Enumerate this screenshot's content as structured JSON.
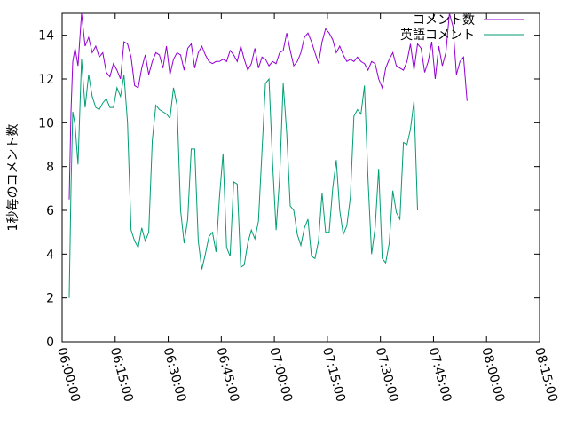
{
  "chart_data": {
    "type": "line",
    "title": "",
    "xlabel": "",
    "ylabel": "1秒毎のコメント数",
    "xlim": [
      "06:00:00",
      "08:15:00"
    ],
    "ylim": [
      0,
      15
    ],
    "y_ticks": [
      0,
      2,
      4,
      6,
      8,
      10,
      12,
      14
    ],
    "x_ticks": [
      "06:00:00",
      "06:15:00",
      "06:30:00",
      "06:45:00",
      "07:00:00",
      "07:15:00",
      "07:30:00",
      "07:45:00",
      "08:00:00",
      "08:15:00"
    ],
    "grid": false,
    "legend_position": "top-right",
    "series": [
      {
        "name": "コメント数",
        "color": "#9400d3",
        "points": [
          [
            "06:02:00",
            6.5
          ],
          [
            "06:02:30",
            10.5
          ],
          [
            "06:03:00",
            12.8
          ],
          [
            "06:03:40",
            13.4
          ],
          [
            "06:04:30",
            12.6
          ],
          [
            "06:05:30",
            15.0
          ],
          [
            "06:06:30",
            13.5
          ],
          [
            "06:07:30",
            13.9
          ],
          [
            "06:08:30",
            13.2
          ],
          [
            "06:09:30",
            13.5
          ],
          [
            "06:10:30",
            13.0
          ],
          [
            "06:11:30",
            13.2
          ],
          [
            "06:12:30",
            12.3
          ],
          [
            "06:13:30",
            12.1
          ],
          [
            "06:14:30",
            12.7
          ],
          [
            "06:15:30",
            12.4
          ],
          [
            "06:16:30",
            12.0
          ],
          [
            "06:17:30",
            13.7
          ],
          [
            "06:18:30",
            13.6
          ],
          [
            "06:19:30",
            13.0
          ],
          [
            "06:20:30",
            11.7
          ],
          [
            "06:21:30",
            11.6
          ],
          [
            "06:22:30",
            12.5
          ],
          [
            "06:23:30",
            13.1
          ],
          [
            "06:24:30",
            12.2
          ],
          [
            "06:25:30",
            12.8
          ],
          [
            "06:26:30",
            13.2
          ],
          [
            "06:27:30",
            13.1
          ],
          [
            "06:28:30",
            12.5
          ],
          [
            "06:29:30",
            13.5
          ],
          [
            "06:30:30",
            12.2
          ],
          [
            "06:31:30",
            12.9
          ],
          [
            "06:32:30",
            13.2
          ],
          [
            "06:33:30",
            13.1
          ],
          [
            "06:34:30",
            12.4
          ],
          [
            "06:35:30",
            13.4
          ],
          [
            "06:36:30",
            13.6
          ],
          [
            "06:37:30",
            12.5
          ],
          [
            "06:38:30",
            13.2
          ],
          [
            "06:39:30",
            13.5
          ],
          [
            "06:40:30",
            13.1
          ],
          [
            "06:41:30",
            12.8
          ],
          [
            "06:42:30",
            12.7
          ],
          [
            "06:43:30",
            12.8
          ],
          [
            "06:44:30",
            12.8
          ],
          [
            "06:45:30",
            12.9
          ],
          [
            "06:46:30",
            12.8
          ],
          [
            "06:47:30",
            13.3
          ],
          [
            "06:48:30",
            13.1
          ],
          [
            "06:49:30",
            12.8
          ],
          [
            "06:50:30",
            13.5
          ],
          [
            "06:51:30",
            12.9
          ],
          [
            "06:52:30",
            12.4
          ],
          [
            "06:53:30",
            12.7
          ],
          [
            "06:54:30",
            13.4
          ],
          [
            "06:55:30",
            12.5
          ],
          [
            "06:56:30",
            13.0
          ],
          [
            "06:57:30",
            12.9
          ],
          [
            "06:58:30",
            12.6
          ],
          [
            "06:59:30",
            12.8
          ],
          [
            "07:00:30",
            12.7
          ],
          [
            "07:01:30",
            13.2
          ],
          [
            "07:02:30",
            13.3
          ],
          [
            "07:03:30",
            14.1
          ],
          [
            "07:04:30",
            13.3
          ],
          [
            "07:05:30",
            12.6
          ],
          [
            "07:06:30",
            12.8
          ],
          [
            "07:07:30",
            13.2
          ],
          [
            "07:08:30",
            13.9
          ],
          [
            "07:09:30",
            14.1
          ],
          [
            "07:10:30",
            13.7
          ],
          [
            "07:11:30",
            13.2
          ],
          [
            "07:12:30",
            12.7
          ],
          [
            "07:13:30",
            13.7
          ],
          [
            "07:14:30",
            14.3
          ],
          [
            "07:15:30",
            14.1
          ],
          [
            "07:16:30",
            13.8
          ],
          [
            "07:17:30",
            13.2
          ],
          [
            "07:18:30",
            13.5
          ],
          [
            "07:19:30",
            13.1
          ],
          [
            "07:20:30",
            12.8
          ],
          [
            "07:21:30",
            12.9
          ],
          [
            "07:22:30",
            12.8
          ],
          [
            "07:23:30",
            13.0
          ],
          [
            "07:24:30",
            12.8
          ],
          [
            "07:25:30",
            12.7
          ],
          [
            "07:26:30",
            12.4
          ],
          [
            "07:27:30",
            12.8
          ],
          [
            "07:28:30",
            12.7
          ],
          [
            "07:29:30",
            12.0
          ],
          [
            "07:30:30",
            11.6
          ],
          [
            "07:31:30",
            12.5
          ],
          [
            "07:32:30",
            12.9
          ],
          [
            "07:33:30",
            13.2
          ],
          [
            "07:34:30",
            12.6
          ],
          [
            "07:35:30",
            12.5
          ],
          [
            "07:36:30",
            12.4
          ],
          [
            "07:37:30",
            12.8
          ],
          [
            "07:38:30",
            13.6
          ],
          [
            "07:39:30",
            12.4
          ],
          [
            "07:40:30",
            13.6
          ],
          [
            "07:41:30",
            13.4
          ],
          [
            "07:42:30",
            12.3
          ],
          [
            "07:43:30",
            12.8
          ],
          [
            "07:44:30",
            13.7
          ],
          [
            "07:45:30",
            12.0
          ],
          [
            "07:46:30",
            13.5
          ],
          [
            "07:47:30",
            12.6
          ],
          [
            "07:48:30",
            13.2
          ],
          [
            "07:49:30",
            15.0
          ],
          [
            "07:50:30",
            14.4
          ],
          [
            "07:51:30",
            12.2
          ],
          [
            "07:52:30",
            12.8
          ],
          [
            "07:53:30",
            13.0
          ],
          [
            "07:54:30",
            11.0
          ]
        ]
      },
      {
        "name": "英語コメント",
        "color": "#009e73",
        "points": [
          [
            "06:02:00",
            2.0
          ],
          [
            "06:02:30",
            7.0
          ],
          [
            "06:03:00",
            10.5
          ],
          [
            "06:03:40",
            9.9
          ],
          [
            "06:04:30",
            8.1
          ],
          [
            "06:05:30",
            12.9
          ],
          [
            "06:06:30",
            10.7
          ],
          [
            "06:07:30",
            12.2
          ],
          [
            "06:08:30",
            11.2
          ],
          [
            "06:09:30",
            10.7
          ],
          [
            "06:10:30",
            10.6
          ],
          [
            "06:11:30",
            10.9
          ],
          [
            "06:12:30",
            11.1
          ],
          [
            "06:13:30",
            10.7
          ],
          [
            "06:14:30",
            10.7
          ],
          [
            "06:15:30",
            11.6
          ],
          [
            "06:16:30",
            11.2
          ],
          [
            "06:17:30",
            12.2
          ],
          [
            "06:18:30",
            10.0
          ],
          [
            "06:19:30",
            5.1
          ],
          [
            "06:20:30",
            4.6
          ],
          [
            "06:21:30",
            4.3
          ],
          [
            "06:22:30",
            5.2
          ],
          [
            "06:23:30",
            4.6
          ],
          [
            "06:24:30",
            5.0
          ],
          [
            "06:25:30",
            9.2
          ],
          [
            "06:26:30",
            10.8
          ],
          [
            "06:27:30",
            10.6
          ],
          [
            "06:28:30",
            10.5
          ],
          [
            "06:29:30",
            10.4
          ],
          [
            "06:30:30",
            10.2
          ],
          [
            "06:31:30",
            11.6
          ],
          [
            "06:32:30",
            10.8
          ],
          [
            "06:33:30",
            6.0
          ],
          [
            "06:34:30",
            4.5
          ],
          [
            "06:35:30",
            5.6
          ],
          [
            "06:36:30",
            8.8
          ],
          [
            "06:37:30",
            8.8
          ],
          [
            "06:38:30",
            4.6
          ],
          [
            "06:39:30",
            3.3
          ],
          [
            "06:40:30",
            4.0
          ],
          [
            "06:41:30",
            4.8
          ],
          [
            "06:42:30",
            5.0
          ],
          [
            "06:43:30",
            4.1
          ],
          [
            "06:44:30",
            6.6
          ],
          [
            "06:45:30",
            8.6
          ],
          [
            "06:46:30",
            4.3
          ],
          [
            "06:47:30",
            3.9
          ],
          [
            "06:48:30",
            7.3
          ],
          [
            "06:49:30",
            7.2
          ],
          [
            "06:50:30",
            3.4
          ],
          [
            "06:51:30",
            3.5
          ],
          [
            "06:52:30",
            4.5
          ],
          [
            "06:53:30",
            5.1
          ],
          [
            "06:54:30",
            4.7
          ],
          [
            "06:55:30",
            5.5
          ],
          [
            "06:56:30",
            8.7
          ],
          [
            "06:57:30",
            11.8
          ],
          [
            "06:58:30",
            12.0
          ],
          [
            "06:59:30",
            8.2
          ],
          [
            "07:00:30",
            5.1
          ],
          [
            "07:01:30",
            7.5
          ],
          [
            "07:02:30",
            11.8
          ],
          [
            "07:03:30",
            9.5
          ],
          [
            "07:04:30",
            6.2
          ],
          [
            "07:05:30",
            6.0
          ],
          [
            "07:06:30",
            4.9
          ],
          [
            "07:07:30",
            4.4
          ],
          [
            "07:08:30",
            5.2
          ],
          [
            "07:09:30",
            5.6
          ],
          [
            "07:10:30",
            3.9
          ],
          [
            "07:11:30",
            3.8
          ],
          [
            "07:12:30",
            4.6
          ],
          [
            "07:13:30",
            6.8
          ],
          [
            "07:14:30",
            5.0
          ],
          [
            "07:15:30",
            5.0
          ],
          [
            "07:16:30",
            7.0
          ],
          [
            "07:17:30",
            8.3
          ],
          [
            "07:18:30",
            6.0
          ],
          [
            "07:19:30",
            4.9
          ],
          [
            "07:20:30",
            5.3
          ],
          [
            "07:21:30",
            6.6
          ],
          [
            "07:22:30",
            10.3
          ],
          [
            "07:23:30",
            10.6
          ],
          [
            "07:24:30",
            10.4
          ],
          [
            "07:25:30",
            11.7
          ],
          [
            "07:26:30",
            7.4
          ],
          [
            "07:27:30",
            4.0
          ],
          [
            "07:28:30",
            5.2
          ],
          [
            "07:29:30",
            7.9
          ],
          [
            "07:30:30",
            3.8
          ],
          [
            "07:31:30",
            3.6
          ],
          [
            "07:32:30",
            4.5
          ],
          [
            "07:33:30",
            6.9
          ],
          [
            "07:34:30",
            5.9
          ],
          [
            "07:35:30",
            5.6
          ],
          [
            "07:36:30",
            9.1
          ],
          [
            "07:37:30",
            9.0
          ],
          [
            "07:38:30",
            9.7
          ],
          [
            "07:39:30",
            11.0
          ],
          [
            "07:40:30",
            6.0
          ]
        ]
      }
    ]
  }
}
